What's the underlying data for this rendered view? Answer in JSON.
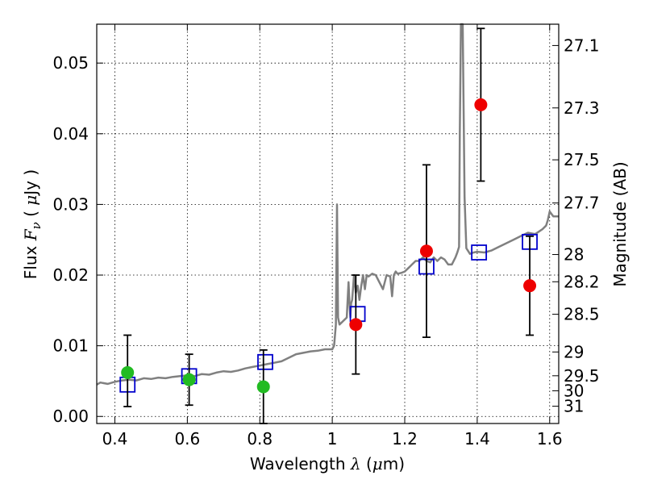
{
  "chart_data": {
    "type": "scatter",
    "xlabel": {
      "pre": "Wavelength ",
      "sym": "λ",
      "unit_open": " (",
      "mu": "μ",
      "unit_rest": "m)"
    },
    "ylabel": {
      "pre": "Flux ",
      "sym": "F",
      "sub": "ν",
      "unit_open": " ( ",
      "mu": "μ",
      "unit_rest": "Jy )"
    },
    "y2label": "Magnitude (AB)",
    "xlim": [
      0.35,
      1.625
    ],
    "ylim": [
      -0.001,
      0.0555
    ],
    "grid": true,
    "x_ticks": [
      0.4,
      0.6,
      0.8,
      1.0,
      1.2,
      1.4,
      1.6
    ],
    "x_tick_labels": [
      "0.4",
      "0.6",
      "0.8",
      "1",
      "1.2",
      "1.4",
      "1.6"
    ],
    "y_ticks": [
      0.0,
      0.01,
      0.02,
      0.03,
      0.04,
      0.05
    ],
    "y_tick_labels": [
      "0.00",
      "0.01",
      "0.02",
      "0.03",
      "0.04",
      "0.05"
    ],
    "y2_ticks": [
      "27.1",
      "27.3",
      "27.5",
      "27.7",
      "28",
      "28.2",
      "28.5",
      "29",
      "29.5",
      "30",
      "31"
    ],
    "colors": {
      "template": "#808080",
      "model": "#0000cc",
      "red_points": "#ee0000",
      "green_points": "#22bb22",
      "errorbar": "#000000"
    },
    "series": [
      {
        "kind": "line",
        "x": [
          0.35,
          0.36,
          0.38,
          0.4,
          0.42,
          0.44,
          0.46,
          0.48,
          0.5,
          0.52,
          0.54,
          0.56,
          0.58,
          0.6,
          0.62,
          0.64,
          0.66,
          0.68,
          0.7,
          0.72,
          0.74,
          0.76,
          0.78,
          0.8,
          0.82,
          0.84,
          0.86,
          0.88,
          0.9,
          0.92,
          0.94,
          0.96,
          0.98,
          1.0,
          1.005,
          1.01,
          1.013,
          1.016,
          1.02,
          1.03,
          1.04,
          1.045,
          1.048,
          1.05,
          1.052,
          1.055,
          1.06,
          1.065,
          1.07,
          1.075,
          1.08,
          1.085,
          1.09,
          1.095,
          1.1,
          1.11,
          1.12,
          1.13,
          1.14,
          1.15,
          1.16,
          1.165,
          1.17,
          1.175,
          1.18,
          1.19,
          1.2,
          1.21,
          1.22,
          1.23,
          1.24,
          1.25,
          1.26,
          1.27,
          1.28,
          1.29,
          1.3,
          1.31,
          1.32,
          1.33,
          1.34,
          1.345,
          1.35,
          1.352,
          1.355,
          1.358,
          1.36,
          1.365,
          1.37,
          1.38,
          1.39,
          1.4,
          1.42,
          1.44,
          1.46,
          1.48,
          1.5,
          1.52,
          1.54,
          1.56,
          1.58,
          1.59,
          1.595,
          1.6,
          1.61,
          1.625
        ],
        "y": [
          0.0045,
          0.0048,
          0.0046,
          0.0049,
          0.0051,
          0.0052,
          0.0051,
          0.0054,
          0.0053,
          0.0055,
          0.0054,
          0.0056,
          0.0057,
          0.0058,
          0.0057,
          0.006,
          0.0059,
          0.0062,
          0.0064,
          0.0063,
          0.0065,
          0.0068,
          0.007,
          0.0072,
          0.0074,
          0.0076,
          0.0078,
          0.0083,
          0.0088,
          0.009,
          0.0092,
          0.0093,
          0.0095,
          0.0095,
          0.01,
          0.013,
          0.03,
          0.014,
          0.013,
          0.0135,
          0.014,
          0.019,
          0.0155,
          0.014,
          0.016,
          0.0165,
          0.02,
          0.0175,
          0.0185,
          0.0165,
          0.0185,
          0.02,
          0.018,
          0.02,
          0.0198,
          0.0202,
          0.02,
          0.019,
          0.018,
          0.02,
          0.0198,
          0.017,
          0.02,
          0.0205,
          0.0202,
          0.0203,
          0.0205,
          0.021,
          0.0215,
          0.022,
          0.022,
          0.0225,
          0.022,
          0.0218,
          0.0225,
          0.022,
          0.0225,
          0.0222,
          0.0215,
          0.0215,
          0.0225,
          0.0232,
          0.024,
          0.04,
          0.0555,
          0.0555,
          0.0555,
          0.031,
          0.0238,
          0.023,
          0.0232,
          0.0233,
          0.0232,
          0.0235,
          0.024,
          0.0245,
          0.025,
          0.0255,
          0.026,
          0.0258,
          0.0265,
          0.027,
          0.0278,
          0.029,
          0.0283,
          0.0283
        ]
      },
      {
        "kind": "model_squares",
        "x": [
          0.435,
          0.605,
          0.815,
          1.07,
          1.26,
          1.405,
          1.545
        ],
        "y": [
          0.0045,
          0.0057,
          0.0077,
          0.0145,
          0.0212,
          0.0232,
          0.0247
        ]
      },
      {
        "kind": "points",
        "color": "green",
        "x": [
          0.435,
          0.605,
          0.81
        ],
        "y": [
          0.0062,
          0.0052,
          0.0042
        ],
        "yerr_lo": [
          0.0048,
          0.0036,
          0.0052
        ],
        "yerr_hi": [
          0.0053,
          0.0036,
          0.0052
        ]
      },
      {
        "kind": "points",
        "color": "red",
        "x": [
          1.065,
          1.26,
          1.41,
          1.545
        ],
        "y": [
          0.013,
          0.0234,
          0.0441,
          0.0185
        ],
        "yerr_lo": [
          0.007,
          0.0122,
          0.0108,
          0.007
        ],
        "yerr_hi": [
          0.007,
          0.0122,
          0.0108,
          0.007
        ]
      }
    ]
  }
}
